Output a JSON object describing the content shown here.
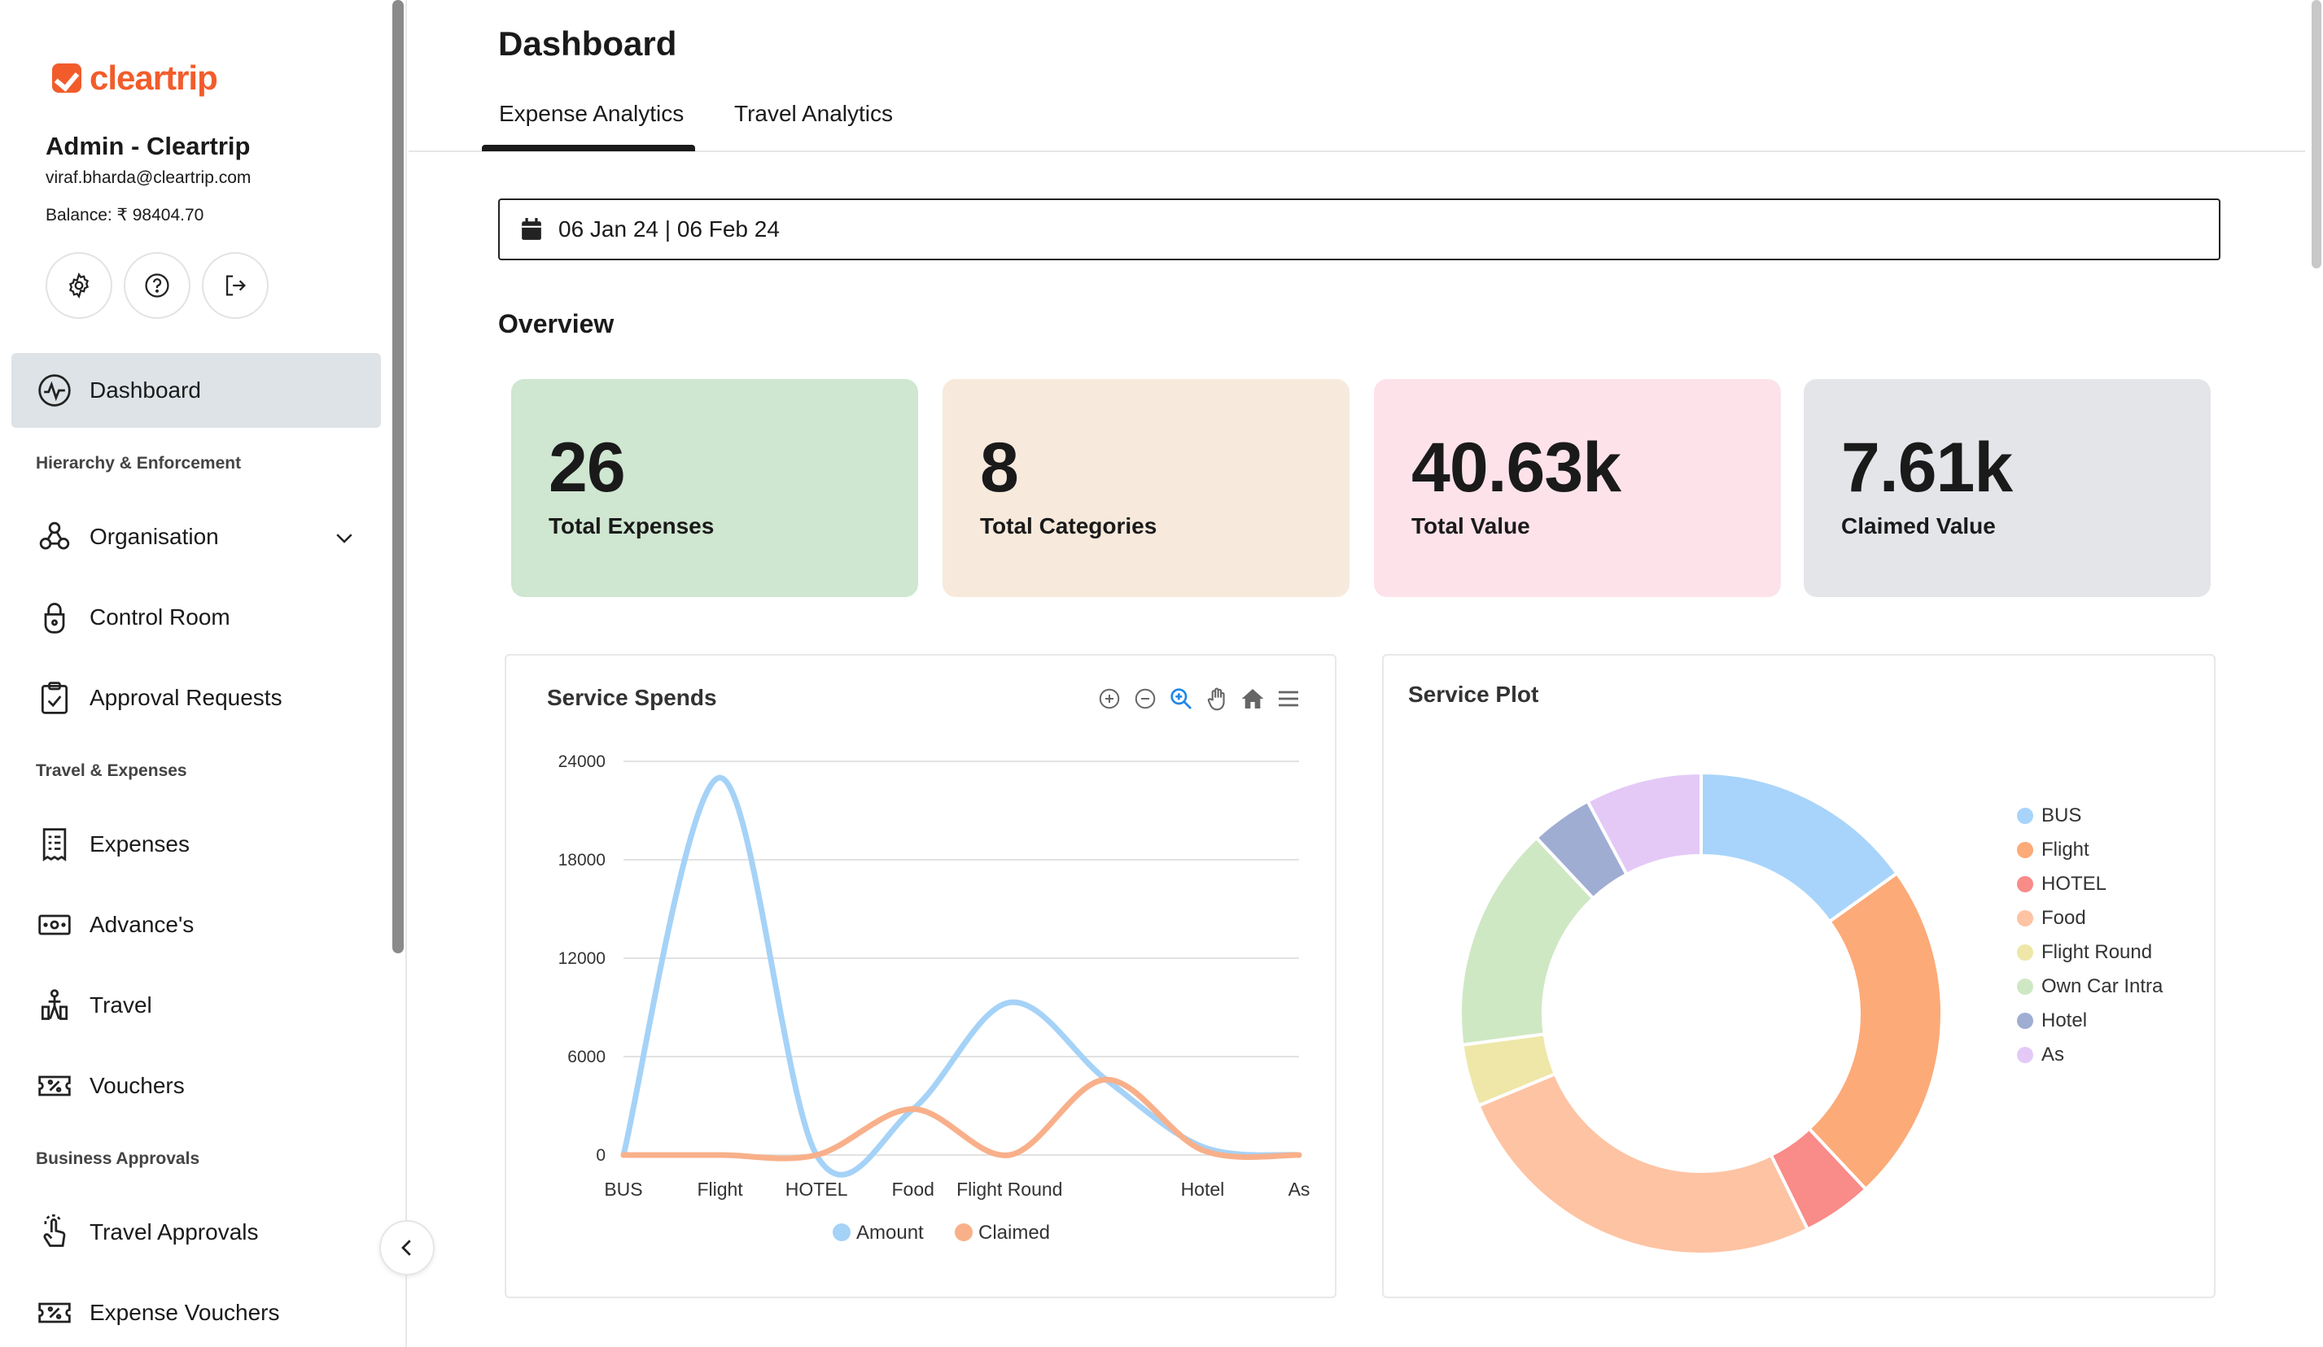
{
  "brand": {
    "name": "cleartrip",
    "color": "#f25c2b"
  },
  "user": {
    "name": "Admin - Cleartrip",
    "email": "viraf.bharda@cleartrip.com",
    "balance": "Balance: ₹ 98404.70"
  },
  "sidebar": {
    "dashboard": "Dashboard",
    "sections": {
      "hierarchy": "Hierarchy & Enforcement",
      "travel": "Travel & Expenses",
      "business": "Business Approvals"
    },
    "items": {
      "organisation": "Organisation",
      "control_room": "Control Room",
      "approval_requests": "Approval Requests",
      "expenses": "Expenses",
      "advances": "Advance's",
      "travel": "Travel",
      "vouchers": "Vouchers",
      "travel_approvals": "Travel Approvals",
      "expense_vouchers": "Expense Vouchers"
    }
  },
  "header": {
    "title": "Dashboard",
    "tabs": [
      "Expense Analytics",
      "Travel Analytics"
    ]
  },
  "date_range": "06 Jan 24 | 06 Feb 24",
  "overview": {
    "title": "Overview",
    "cards": [
      {
        "value": "26",
        "label": "Total Expenses",
        "color": "#cfe6d1"
      },
      {
        "value": "8",
        "label": "Total Categories",
        "color": "#f7eadc"
      },
      {
        "value": "40.63k",
        "label": "Total Value",
        "color": "#fde2ea"
      },
      {
        "value": "7.61k",
        "label": "Claimed Value",
        "color": "#e3e5e9"
      }
    ]
  },
  "chart_data": [
    {
      "type": "line",
      "title": "Service Spends",
      "categories": [
        "BUS",
        "Flight",
        "HOTEL",
        "Food",
        "Flight Round",
        "Own Car Intra",
        "Hotel",
        "As"
      ],
      "x_tick_labels": [
        "BUS",
        "Flight",
        "HOTEL",
        "Food",
        "Flight Round",
        "",
        "Hotel",
        "As"
      ],
      "y_ticks": [
        "24000",
        "18000",
        "12000",
        "6000",
        "0"
      ],
      "ylim": [
        0,
        24000
      ],
      "smooth": true,
      "grid": true,
      "legend_placement": "bottom",
      "series": [
        {
          "name": "Amount",
          "color": "#a5d2f7",
          "values": [
            0,
            23000,
            0,
            2800,
            9300,
            4600,
            500,
            0
          ]
        },
        {
          "name": "Claimed",
          "color": "#f8b08a",
          "values": [
            0,
            0,
            0,
            2800,
            0,
            4600,
            300,
            0
          ]
        }
      ]
    },
    {
      "type": "pie",
      "donut": true,
      "title": "Service Plot",
      "legend_placement": "right",
      "slices": [
        {
          "label": "BUS",
          "value": 14.5,
          "color": "#a8d4fb"
        },
        {
          "label": "Flight",
          "value": 22,
          "color": "#fcaa78"
        },
        {
          "label": "HOTEL",
          "value": 4.5,
          "color": "#f98b88"
        },
        {
          "label": "Food",
          "value": 25,
          "color": "#fec3a3"
        },
        {
          "label": "Flight Round",
          "value": 4,
          "color": "#eee7a8"
        },
        {
          "label": "Own Car Intra",
          "value": 14.5,
          "color": "#cfe8c4"
        },
        {
          "label": "Hotel",
          "value": 4,
          "color": "#a0add3"
        },
        {
          "label": "As",
          "value": 7.5,
          "color": "#e4c9f7"
        }
      ]
    }
  ]
}
